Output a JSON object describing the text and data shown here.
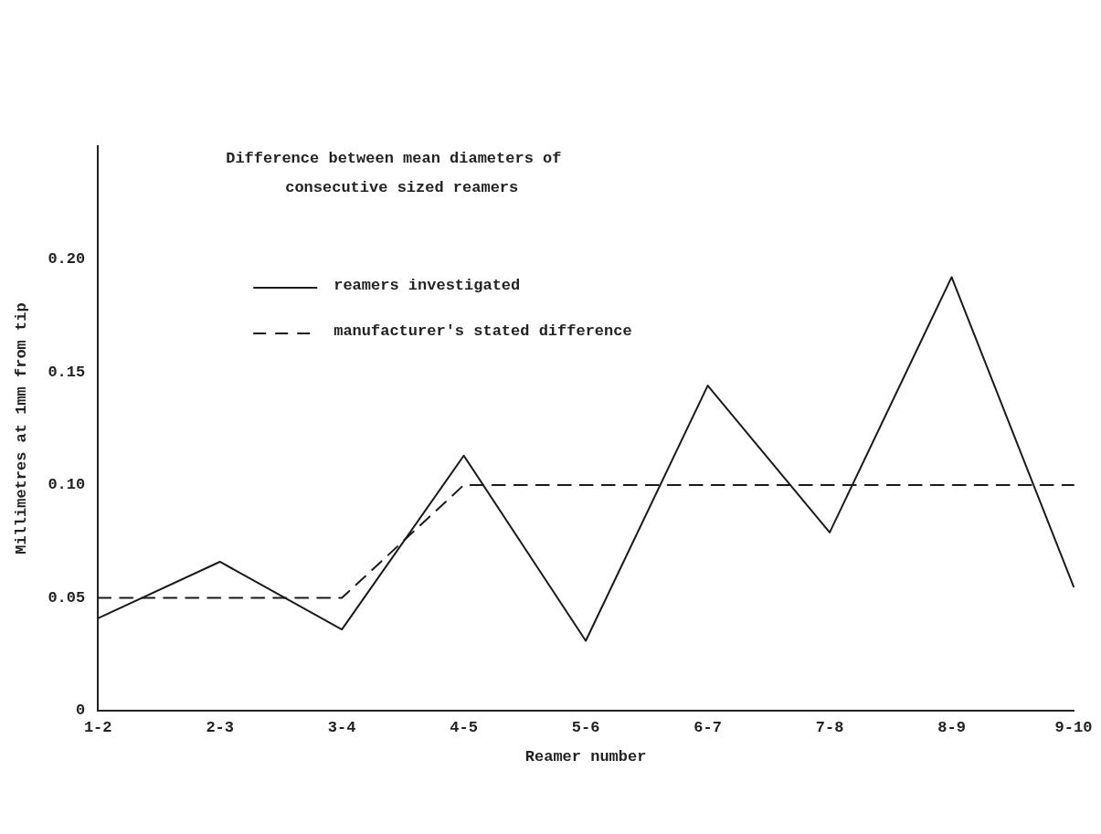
{
  "chart_data": {
    "type": "line",
    "title": "Difference between mean diameters of consecutive sized reamers",
    "xlabel": "Reamer number",
    "ylabel": "Millimetres at 1mm from tip",
    "categories": [
      "1-2",
      "2-3",
      "3-4",
      "4-5",
      "5-6",
      "6-7",
      "7-8",
      "8-9",
      "9-10"
    ],
    "series": [
      {
        "name": "reamers investigated",
        "color": "#1a1a1a",
        "line_style": "solid",
        "values": [
          0.041,
          0.066,
          0.036,
          0.113,
          0.031,
          0.144,
          0.079,
          0.192,
          0.055
        ]
      },
      {
        "name": "manufacturer's stated difference",
        "color": "#1a1a1a",
        "line_style": "dashed",
        "values": [
          0.05,
          0.05,
          0.05,
          0.1,
          0.1,
          0.1,
          0.1,
          0.1,
          0.1
        ]
      }
    ],
    "ylim": [
      0,
      0.25
    ],
    "yticks": [
      0,
      {
        "value": 0.05,
        "label": "0.05"
      },
      {
        "value": 0.1,
        "label": "0.10"
      },
      {
        "value": 0.15,
        "label": "0.15"
      },
      {
        "value": 0.2,
        "label": "0.20"
      }
    ],
    "grid": false,
    "legend": "top left",
    "marker": "none"
  }
}
